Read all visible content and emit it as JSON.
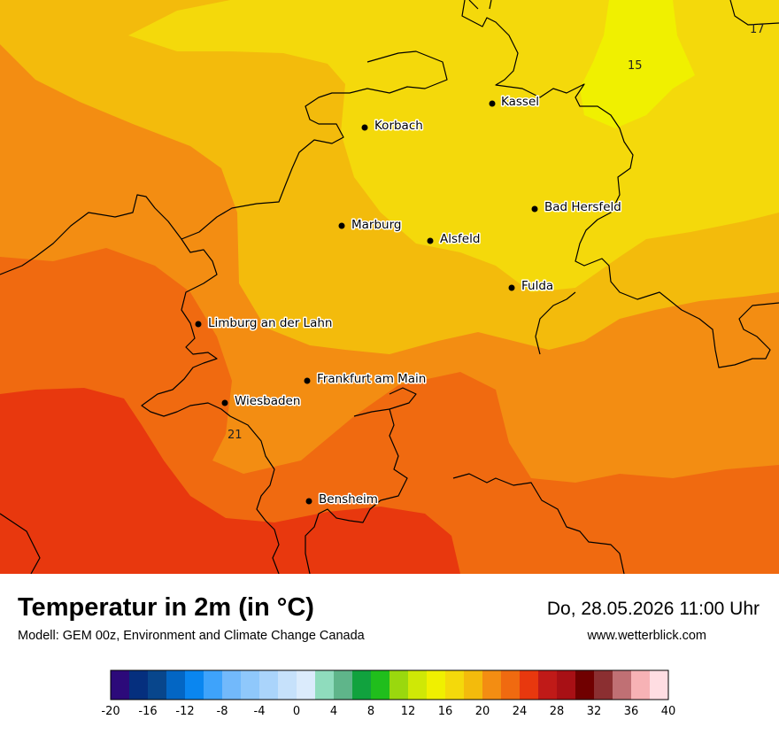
{
  "map": {
    "cities": [
      {
        "name": "Kassel"
      },
      {
        "name": "Korbach"
      },
      {
        "name": "Bad Hersfeld"
      },
      {
        "name": "Marburg"
      },
      {
        "name": "Alsfeld"
      },
      {
        "name": "Fulda"
      },
      {
        "name": "Limburg an der Lahn"
      },
      {
        "name": "Frankfurt am Main"
      },
      {
        "name": "Wiesbaden"
      },
      {
        "name": "Bensheim"
      }
    ],
    "isoline_labels": [
      "17",
      "15",
      "21"
    ],
    "colors": {
      "t14_16": "#f0f000",
      "t16_18": "#f4d90b",
      "t18_20": "#f3bb0c",
      "t20_22": "#f38d12",
      "t22_24": "#f06a10",
      "t24_26": "#e8380e",
      "border": "#000000"
    }
  },
  "footer": {
    "title": "Temperatur in 2m (in °C)",
    "subtitle": "Modell: GEM 00z, Environment and Climate Change Canada",
    "datetime": "Do, 28.05.2026 11:00 Uhr",
    "website": "www.wetterblick.com"
  },
  "legend": {
    "ticks": [
      "-20",
      "-16",
      "-12",
      "-8",
      "-4",
      "0",
      "4",
      "8",
      "12",
      "16",
      "20",
      "24",
      "28",
      "32",
      "36",
      "40"
    ],
    "colors": [
      "#2c0a7a",
      "#052f7e",
      "#08468c",
      "#0366c4",
      "#0a86f0",
      "#3ea3fb",
      "#72b9fb",
      "#8fc8fb",
      "#aad4fb",
      "#c6e1fb",
      "#dbebfc",
      "#8fdcbd",
      "#5fb58a",
      "#11a23e",
      "#20be1c",
      "#9ad80e",
      "#cfe806",
      "#f0f000",
      "#f4d90b",
      "#f3bb0c",
      "#f38d12",
      "#f06a10",
      "#e8380e",
      "#c01a18",
      "#a81015",
      "#700000",
      "#8b2f31",
      "#c07074",
      "#f7b2b5",
      "#ffdde2"
    ]
  }
}
